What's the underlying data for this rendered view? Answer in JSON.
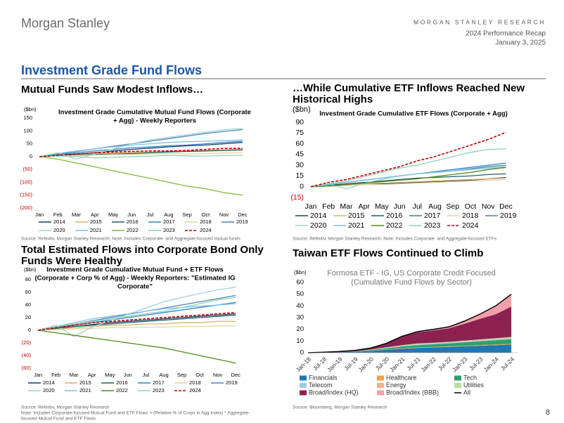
{
  "header": {
    "logo": "Morgan Stanley",
    "research": "MORGAN STANLEY RESEARCH",
    "report": "2024 Performance Recap",
    "date": "January 3, 2025"
  },
  "title": "Investment Grade Fund Flows",
  "page_number": "8",
  "panels": [
    {
      "heading": [
        "Mutual Funds Saw Modest Inflows…"
      ],
      "note": [
        "Source: Refinitiv, Morgan Stanley Research; Note: Includes Corporate- and Aggregate-focused mutual funds"
      ]
    },
    {
      "heading": [
        "…While Cumulative ETF Inflows Reached New",
        "Historical Highs"
      ],
      "note": [
        "Source: Refinitiv, Morgan Stanley Research; Note: Includes Corporate- and Aggregate-focused ETFs"
      ]
    },
    {
      "heading": [
        "Total Estimated Flows into Corporate Bond Only",
        "Funds Were Healthy"
      ],
      "note": [
        "Source: Refinitiv, Morgan Stanley Research",
        "Note: Includes Corporate-focused Mutual Fund and ETF Flows + (Relative % of Corps in Agg Index) * Aggregate-",
        "focused Mutual Fund and ETF Flows"
      ]
    },
    {
      "heading": [
        "Taiwan ETF Flows Continued to Climb"
      ],
      "note": [
        "Source: Bloomberg, Morgan Stanley Research"
      ]
    }
  ],
  "chart_data": [
    {
      "type": "line",
      "title": [
        "Investment Grade Cumulative Mutual Fund Flows (Corporate",
        "+ Agg) - Weekly Reporters"
      ],
      "y_label": "($bn)",
      "negative_tick_color": "#c00000",
      "categories": [
        "Jan",
        "Feb",
        "Mar",
        "Apr",
        "May",
        "Jun",
        "Jul",
        "Aug",
        "Sep",
        "Oct",
        "Nov",
        "Dec"
      ],
      "ylim": [
        -200,
        150
      ],
      "yticks": [
        150,
        100,
        50,
        0,
        {
          "value": -50,
          "label": "(50)"
        },
        {
          "value": -100,
          "label": "(100)"
        },
        {
          "value": -150,
          "label": "(150)"
        },
        {
          "value": -200,
          "label": "(200)"
        }
      ],
      "series": [
        {
          "name": "2014",
          "color": "#1f3a6e",
          "values": [
            0,
            5,
            10,
            15,
            22,
            28,
            33,
            38,
            42,
            45,
            50,
            55
          ]
        },
        {
          "name": "2015",
          "color": "#d9b36b",
          "values": [
            0,
            3,
            6,
            10,
            14,
            16,
            18,
            20,
            22,
            24,
            26,
            28
          ]
        },
        {
          "name": "2016",
          "color": "#1f5f5f",
          "values": [
            0,
            2,
            5,
            8,
            10,
            12,
            15,
            18,
            20,
            22,
            24,
            26
          ]
        },
        {
          "name": "2017",
          "color": "#2e86c1",
          "values": [
            0,
            8,
            15,
            22,
            28,
            34,
            38,
            42,
            45,
            50,
            55,
            60
          ]
        },
        {
          "name": "2018",
          "color": "#e6d3a3",
          "values": [
            0,
            2,
            4,
            6,
            8,
            8,
            10,
            12,
            10,
            12,
            14,
            15
          ]
        },
        {
          "name": "2019",
          "color": "#4a7fc0",
          "values": [
            0,
            10,
            20,
            30,
            40,
            50,
            60,
            70,
            80,
            90,
            98,
            105
          ]
        },
        {
          "name": "2020",
          "color": "#9fd3cf",
          "values": [
            0,
            15,
            -10,
            10,
            30,
            50,
            65,
            75,
            85,
            95,
            105,
            110
          ]
        },
        {
          "name": "2021",
          "color": "#7fc3e6",
          "values": [
            0,
            12,
            22,
            30,
            38,
            45,
            50,
            55,
            58,
            60,
            62,
            65
          ]
        },
        {
          "name": "2022",
          "color": "#7cba3c",
          "values": [
            0,
            -10,
            -25,
            -40,
            -55,
            -70,
            -85,
            -100,
            -115,
            -125,
            -140,
            -150
          ]
        },
        {
          "name": "2023",
          "color": "#8fd3b5",
          "values": [
            0,
            2,
            0,
            -5,
            -3,
            0,
            2,
            5,
            3,
            2,
            4,
            5
          ]
        },
        {
          "name": "2024",
          "color": "#c00000",
          "dashed": true,
          "values": [
            0,
            5,
            10,
            15,
            18,
            20,
            22,
            22,
            24,
            28,
            32,
            32
          ]
        }
      ]
    },
    {
      "type": "line",
      "title": [
        "Investment Grade Cumulative ETF Flows (Corporate + Agg)"
      ],
      "y_label": "($bn)",
      "negative_tick_color": "#c00000",
      "categories": [
        "Jan",
        "Feb",
        "Mar",
        "Apr",
        "May",
        "Jun",
        "Jul",
        "Aug",
        "Sep",
        "Oct",
        "Nov",
        "Dec"
      ],
      "ylim": [
        -15,
        90
      ],
      "yticks": [
        90,
        75,
        60,
        45,
        30,
        15,
        0,
        {
          "value": -15,
          "label": "(15)"
        }
      ],
      "series": [
        {
          "name": "2014",
          "color": "#1f3a6e",
          "values": [
            0,
            1,
            2,
            3,
            4,
            5,
            6,
            7,
            8,
            9,
            11,
            13
          ]
        },
        {
          "name": "2015",
          "color": "#d9b36b",
          "values": [
            0,
            2,
            3,
            4,
            5,
            6,
            7,
            8,
            9,
            10,
            11,
            12
          ]
        },
        {
          "name": "2016",
          "color": "#1f5f5f",
          "values": [
            0,
            2,
            4,
            6,
            8,
            10,
            12,
            13,
            14,
            15,
            17,
            18
          ]
        },
        {
          "name": "2017",
          "color": "#2e86c1",
          "values": [
            0,
            3,
            6,
            9,
            12,
            15,
            18,
            21,
            24,
            27,
            30,
            33
          ]
        },
        {
          "name": "2018",
          "color": "#e6d3a3",
          "values": [
            0,
            1,
            2,
            3,
            3,
            4,
            5,
            6,
            7,
            8,
            9,
            10
          ]
        },
        {
          "name": "2019",
          "color": "#4a7fc0",
          "values": [
            0,
            3,
            6,
            9,
            12,
            15,
            18,
            20,
            22,
            25,
            28,
            30
          ]
        },
        {
          "name": "2020",
          "color": "#9fd3cf",
          "values": [
            0,
            4,
            -3,
            5,
            10,
            15,
            18,
            20,
            22,
            24,
            26,
            28
          ]
        },
        {
          "name": "2021",
          "color": "#7fc3e6",
          "values": [
            0,
            3,
            6,
            9,
            12,
            15,
            18,
            20,
            22,
            24,
            26,
            27
          ]
        },
        {
          "name": "2022",
          "color": "#4f8a1f",
          "values": [
            0,
            1,
            3,
            5,
            7,
            9,
            11,
            14,
            17,
            20,
            24,
            27
          ]
        },
        {
          "name": "2023",
          "color": "#8fd3b5",
          "values": [
            0,
            4,
            8,
            14,
            20,
            26,
            30,
            36,
            42,
            48,
            52,
            53
          ]
        },
        {
          "name": "2024",
          "color": "#c00000",
          "dashed": true,
          "values": [
            0,
            6,
            10,
            16,
            22,
            28,
            36,
            42,
            50,
            58,
            66,
            76
          ]
        }
      ]
    },
    {
      "type": "line",
      "title": [
        "Investment Grade Cumulative Mutual Fund + ETF Flows",
        "(Corporate + Corp % of Agg) - Weekly Reporters: \"Estimated IG",
        "Corporate\""
      ],
      "y_label": "($bn)",
      "negative_tick_color": "#c00000",
      "categories": [
        "Jan",
        "Feb",
        "Mar",
        "Apr",
        "May",
        "Jun",
        "Jul",
        "Aug",
        "Sep",
        "Oct",
        "Nov",
        "Dec"
      ],
      "ylim": [
        -60,
        80
      ],
      "yticks": [
        80,
        60,
        40,
        20,
        0,
        {
          "value": -20,
          "label": "(20)"
        },
        {
          "value": -40,
          "label": "(40)"
        },
        {
          "value": -60,
          "label": "(60)"
        }
      ],
      "series": [
        {
          "name": "2014",
          "color": "#1f3a6e",
          "values": [
            0,
            3,
            6,
            9,
            12,
            14,
            16,
            18,
            20,
            22,
            24,
            26
          ]
        },
        {
          "name": "2015",
          "color": "#d9b36b",
          "values": [
            0,
            2,
            4,
            6,
            8,
            8,
            10,
            10,
            12,
            12,
            14,
            14
          ]
        },
        {
          "name": "2016",
          "color": "#1f5f5f",
          "values": [
            0,
            3,
            6,
            8,
            10,
            12,
            14,
            16,
            18,
            20,
            22,
            24
          ]
        },
        {
          "name": "2017",
          "color": "#2e86c1",
          "values": [
            0,
            4,
            8,
            12,
            16,
            20,
            24,
            28,
            32,
            36,
            40,
            44
          ]
        },
        {
          "name": "2018",
          "color": "#e6d3a3",
          "values": [
            0,
            1,
            2,
            3,
            4,
            4,
            5,
            5,
            6,
            6,
            7,
            7
          ]
        },
        {
          "name": "2019",
          "color": "#4a7fc0",
          "values": [
            0,
            5,
            10,
            15,
            20,
            25,
            30,
            35,
            40,
            45,
            50,
            55
          ]
        },
        {
          "name": "2020",
          "color": "#9fd3cf",
          "values": [
            0,
            8,
            -10,
            5,
            15,
            25,
            35,
            45,
            52,
            58,
            64,
            68
          ]
        },
        {
          "name": "2021",
          "color": "#7fc3e6",
          "values": [
            0,
            6,
            12,
            18,
            22,
            26,
            30,
            34,
            36,
            38,
            40,
            42
          ]
        },
        {
          "name": "2022",
          "color": "#4f8a1f",
          "values": [
            0,
            -4,
            -8,
            -12,
            -16,
            -20,
            -24,
            -28,
            -34,
            -40,
            -46,
            -52
          ]
        },
        {
          "name": "2023",
          "color": "#8fd3b5",
          "values": [
            0,
            5,
            10,
            14,
            18,
            22,
            26,
            30,
            36,
            42,
            48,
            52
          ]
        },
        {
          "name": "2024",
          "color": "#c00000",
          "dashed": true,
          "values": [
            0,
            4,
            8,
            12,
            14,
            16,
            18,
            20,
            22,
            24,
            26,
            28
          ]
        }
      ]
    },
    {
      "type": "stacked_area",
      "title": [
        "Formosa ETF - IG, US Corporate Credit Focused",
        "(Cumulative Fund Flows by Sector)"
      ],
      "y_label": "($bn)",
      "categories": [
        "Jan-18",
        "Jul-18",
        "Jan-19",
        "Jul-19",
        "Jan-20",
        "Jul-20",
        "Jan-21",
        "Jul-21",
        "Jan-22",
        "Jul-22",
        "Jan-23",
        "Jul-23",
        "Jan-24",
        "Jul-24"
      ],
      "ylim": [
        0,
        60
      ],
      "yticks": [
        0,
        10,
        20,
        30,
        40,
        50,
        60
      ],
      "series": [
        {
          "name": "Financials",
          "color": "#1f78b4",
          "values": [
            0,
            0.2,
            0.4,
            0.8,
            1.5,
            2.5,
            3.5,
            4,
            4.5,
            5,
            5.5,
            6,
            6.5,
            7
          ]
        },
        {
          "name": "Healthcare",
          "color": "#f0a04b",
          "values": [
            0,
            0,
            0,
            0,
            0.2,
            0.3,
            0.4,
            0.5,
            0.5,
            0.5,
            0.5,
            0.6,
            0.6,
            0.6
          ]
        },
        {
          "name": "Tech",
          "color": "#2aa36b",
          "values": [
            0,
            0,
            0.1,
            0.2,
            0.5,
            1,
            1.5,
            2,
            2.2,
            2.4,
            2.8,
            3.2,
            3.5,
            4
          ]
        },
        {
          "name": "Telecom",
          "color": "#9cc9e6",
          "values": [
            0,
            0,
            0,
            0.1,
            0.2,
            0.3,
            0.4,
            0.5,
            0.5,
            0.5,
            0.6,
            0.6,
            0.7,
            0.8
          ]
        },
        {
          "name": "Energy",
          "color": "#f4b183",
          "values": [
            0,
            0,
            0,
            0.1,
            0.2,
            0.3,
            0.4,
            0.5,
            0.5,
            0.5,
            0.5,
            0.5,
            0.6,
            0.6
          ]
        },
        {
          "name": "Utilities",
          "color": "#b7dfa0",
          "values": [
            0,
            0,
            0,
            0,
            0.1,
            0.2,
            0.3,
            0.4,
            0.4,
            0.4,
            0.4,
            0.5,
            0.5,
            0.5
          ]
        },
        {
          "name": "Broad/Index (HQ)",
          "color": "#8b2252",
          "values": [
            0,
            0.3,
            0.5,
            0.8,
            1.3,
            3.4,
            7.5,
            9.5,
            10.4,
            11.5,
            14.5,
            17.5,
            20.5,
            26
          ]
        },
        {
          "name": "Broad/Index (BBB)",
          "color": "#f2a0a8",
          "values": [
            0,
            0,
            0,
            0,
            0,
            0,
            0,
            0.6,
            1,
            1.2,
            2.2,
            4.1,
            7.1,
            10.5
          ]
        },
        {
          "name": "All",
          "color": "#000000",
          "type": "line",
          "values": [
            0,
            0.5,
            1,
            2,
            4,
            8,
            14,
            18,
            20,
            22,
            27,
            33,
            40,
            50
          ]
        }
      ]
    }
  ]
}
